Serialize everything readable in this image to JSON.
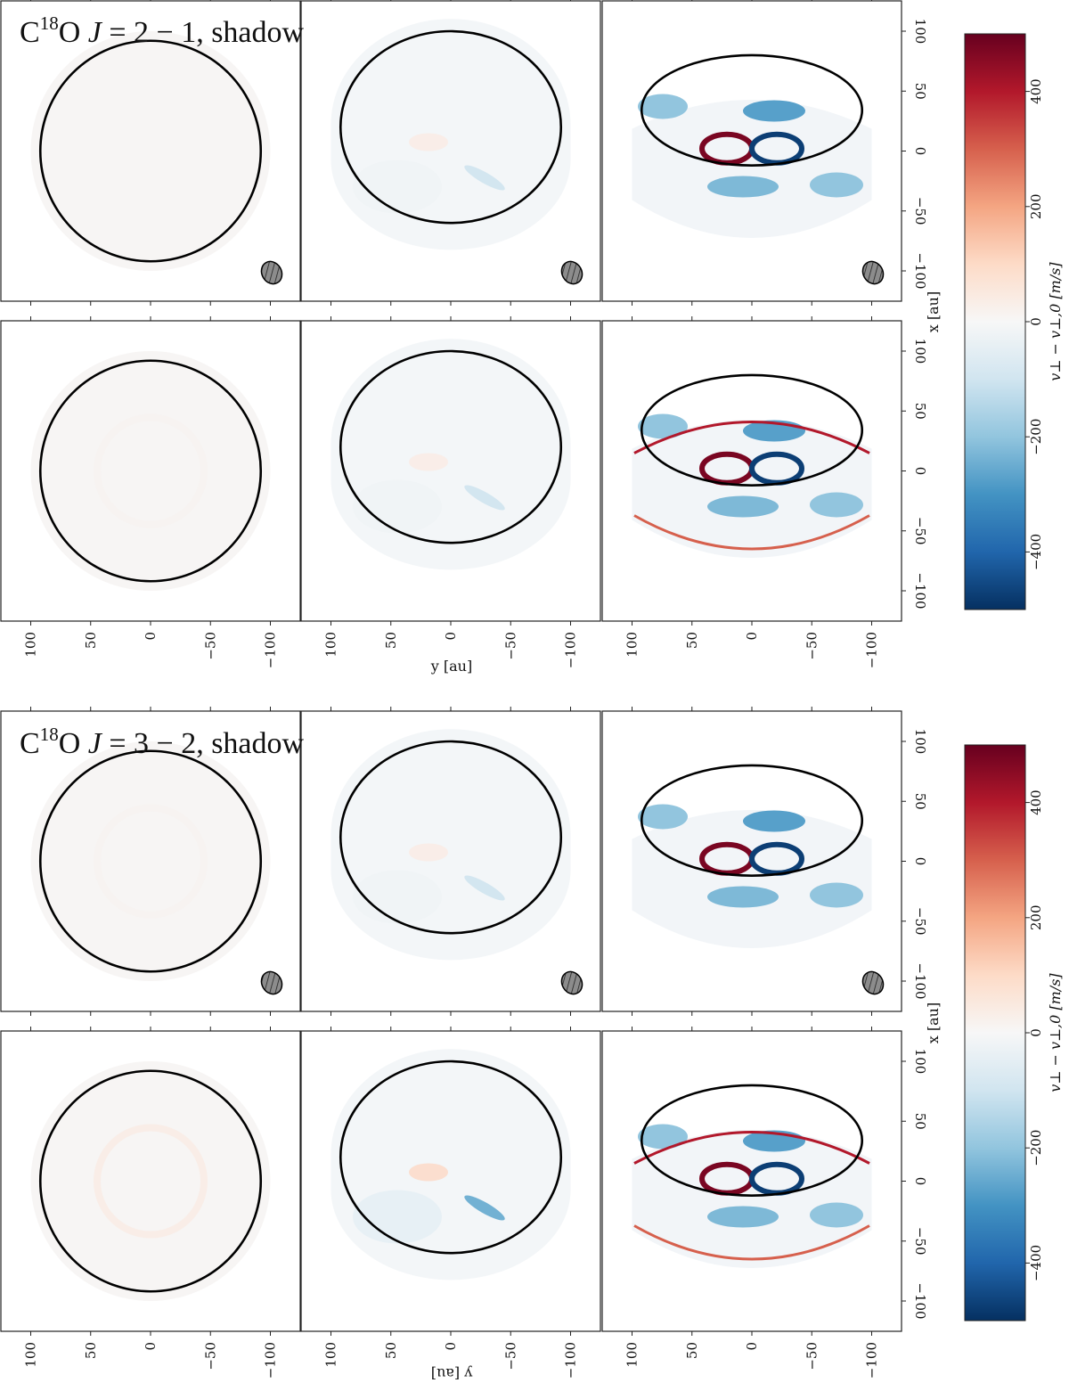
{
  "figure": {
    "panels": [
      {
        "title": {
          "prefix": "C",
          "sup": "18",
          "mid": "O ",
          "italic": "J",
          "suffix": " = 2 − 1, shadow"
        },
        "xlabel": "y [au]",
        "ylabel": "x [au]",
        "cbar_label": "v⊥ − v⊥,0 [m/s]"
      },
      {
        "title": {
          "prefix": "C",
          "sup": "18",
          "mid": "O ",
          "italic": "J",
          "suffix": " = 3 − 2, shadow"
        },
        "xlabel": "y [au]",
        "ylabel": "x [au]",
        "cbar_label": "v⊥ − v⊥,0 [m/s]"
      }
    ]
  },
  "chart_data": {
    "type": "heatmap",
    "layout": "2 figures × 2 rows × 3 columns",
    "x_ticks": [
      100,
      50,
      0,
      -50,
      -100
    ],
    "y_ticks": [
      100,
      50,
      0,
      -50,
      -100
    ],
    "x_range": [
      125,
      -125
    ],
    "y_range": [
      -125,
      125
    ],
    "xlabel": "y [au]",
    "ylabel": "x [au]",
    "colorbar": {
      "label": "v⊥ − v⊥,0 [m/s]",
      "range": [
        -500,
        500
      ],
      "ticks": [
        400,
        200,
        0,
        -200,
        -400
      ],
      "colormap": "RdBu_r",
      "colors": [
        "#053061",
        "#2166ac",
        "#4393c3",
        "#92c5de",
        "#d1e5f0",
        "#f7f7f7",
        "#fddbc7",
        "#f4a582",
        "#d6604d",
        "#b2182b",
        "#67001f"
      ]
    },
    "columns": [
      {
        "column": "left",
        "ellipse_center_x_au": 0,
        "ellipse_semi_x_au": 92,
        "ellipse_center_y_au": 0,
        "ellipse_semi_y_au": 92
      },
      {
        "column": "middle",
        "ellipse_center_x_au": 20,
        "ellipse_semi_x_au": 80,
        "ellipse_center_y_au": 0,
        "ellipse_semi_y_au": 92
      },
      {
        "column": "right",
        "ellipse_center_x_au": 34,
        "ellipse_semi_x_au": 46,
        "ellipse_center_y_au": 0,
        "ellipse_semi_y_au": 92
      }
    ],
    "beam": {
      "shown_in_top_rows": true,
      "hatched": true
    },
    "residual_amplitude_ms": {
      "J=2-1": {
        "top": [
          0,
          60,
          500
        ],
        "bottom": [
          10,
          60,
          500
        ]
      },
      "J=3-2": {
        "top": [
          10,
          60,
          500
        ],
        "bottom": [
          30,
          150,
          500
        ]
      }
    }
  }
}
